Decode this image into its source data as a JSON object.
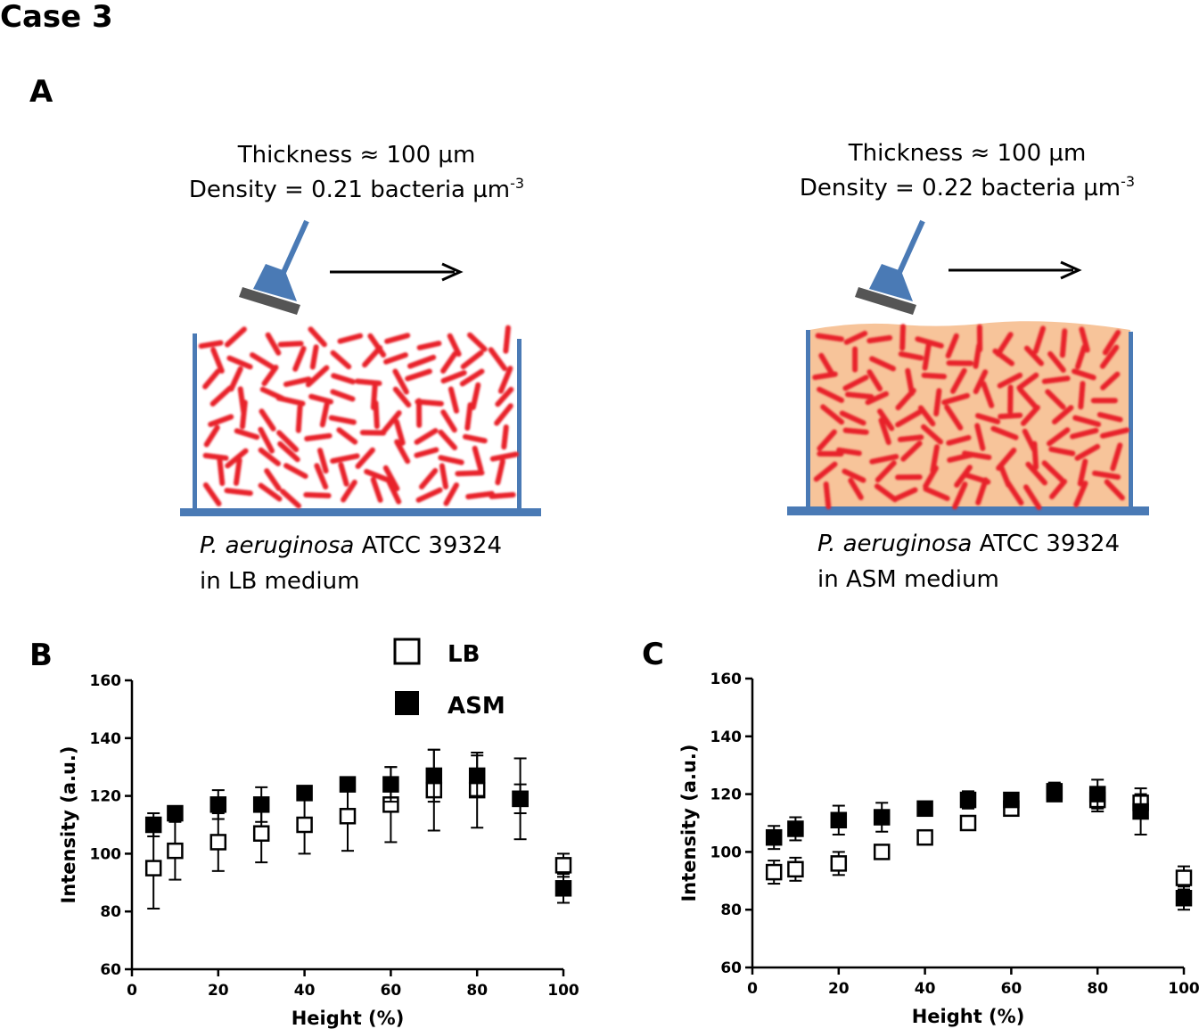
{
  "figure": {
    "case_title": "Case 3",
    "panel_a_label": "A",
    "panel_b_label": "B",
    "panel_c_label": "C"
  },
  "schematic": {
    "left": {
      "thickness": "Thickness ≈ 100 µm",
      "density_prefix": "Density = 0.21 bacteria µm",
      "density_exp": "-3",
      "species": "P. aeruginosa",
      "strain": " ATCC 39324",
      "medium": "in LB medium"
    },
    "right": {
      "thickness": "Thickness ≈ 100 µm",
      "density_prefix": "Density = 0.22 bacteria µm",
      "density_exp": "-3",
      "species": "P. aeruginosa",
      "strain": " ATCC 39324",
      "medium": "in ASM medium"
    },
    "colors": {
      "wall": "#4a7ab5",
      "bacteria": "#e8232b",
      "asm_fill": "#f7c49a",
      "probe": "#4a7ab5",
      "probe_base": "#555555"
    }
  },
  "legend": {
    "lb": "LB",
    "asm": "ASM"
  },
  "chart_data": [
    {
      "panel": "B",
      "type": "scatter",
      "xlabel": "Height (%)",
      "ylabel": "Intensity (a.u.)",
      "xlim": [
        0,
        100
      ],
      "ylim": [
        60,
        160
      ],
      "xticks": [
        0,
        20,
        40,
        60,
        80,
        100
      ],
      "yticks": [
        60,
        80,
        100,
        120,
        140,
        160
      ],
      "series": [
        {
          "name": "LB",
          "marker": "open-square",
          "x": [
            5,
            10,
            20,
            30,
            40,
            50,
            60,
            70,
            80,
            90,
            100
          ],
          "y": [
            95,
            101,
            104,
            107,
            110,
            113,
            117,
            122,
            122,
            119,
            96
          ],
          "err": [
            14,
            10,
            10,
            10,
            10,
            12,
            13,
            14,
            13,
            14,
            4
          ]
        },
        {
          "name": "ASM",
          "marker": "filled-square",
          "x": [
            5,
            10,
            20,
            30,
            40,
            50,
            60,
            70,
            80,
            90,
            100
          ],
          "y": [
            110,
            114,
            117,
            117,
            121,
            124,
            124,
            127,
            127,
            119,
            88
          ],
          "err": [
            4,
            2,
            5,
            6,
            2,
            2,
            6,
            9,
            7,
            5,
            5
          ]
        }
      ]
    },
    {
      "panel": "C",
      "type": "scatter",
      "xlabel": "Height (%)",
      "ylabel": "Intensity (a.u.)",
      "xlim": [
        0,
        100
      ],
      "ylim": [
        60,
        160
      ],
      "xticks": [
        0,
        20,
        40,
        60,
        80,
        100
      ],
      "yticks": [
        60,
        80,
        100,
        120,
        140,
        160
      ],
      "series": [
        {
          "name": "LB",
          "marker": "open-square",
          "x": [
            5,
            10,
            20,
            30,
            40,
            50,
            60,
            70,
            80,
            90,
            100
          ],
          "y": [
            93,
            94,
            96,
            100,
            105,
            110,
            115,
            120,
            118,
            117,
            91
          ],
          "err": [
            4,
            4,
            4,
            1,
            1,
            1,
            1,
            2,
            4,
            3,
            4
          ]
        },
        {
          "name": "ASM",
          "marker": "filled-square",
          "x": [
            5,
            10,
            20,
            30,
            40,
            50,
            60,
            70,
            80,
            90,
            100
          ],
          "y": [
            105,
            108,
            111,
            112,
            115,
            118,
            118,
            121,
            120,
            114,
            84
          ],
          "err": [
            4,
            4,
            5,
            5,
            2,
            3,
            2,
            3,
            5,
            8,
            4
          ]
        }
      ]
    }
  ]
}
